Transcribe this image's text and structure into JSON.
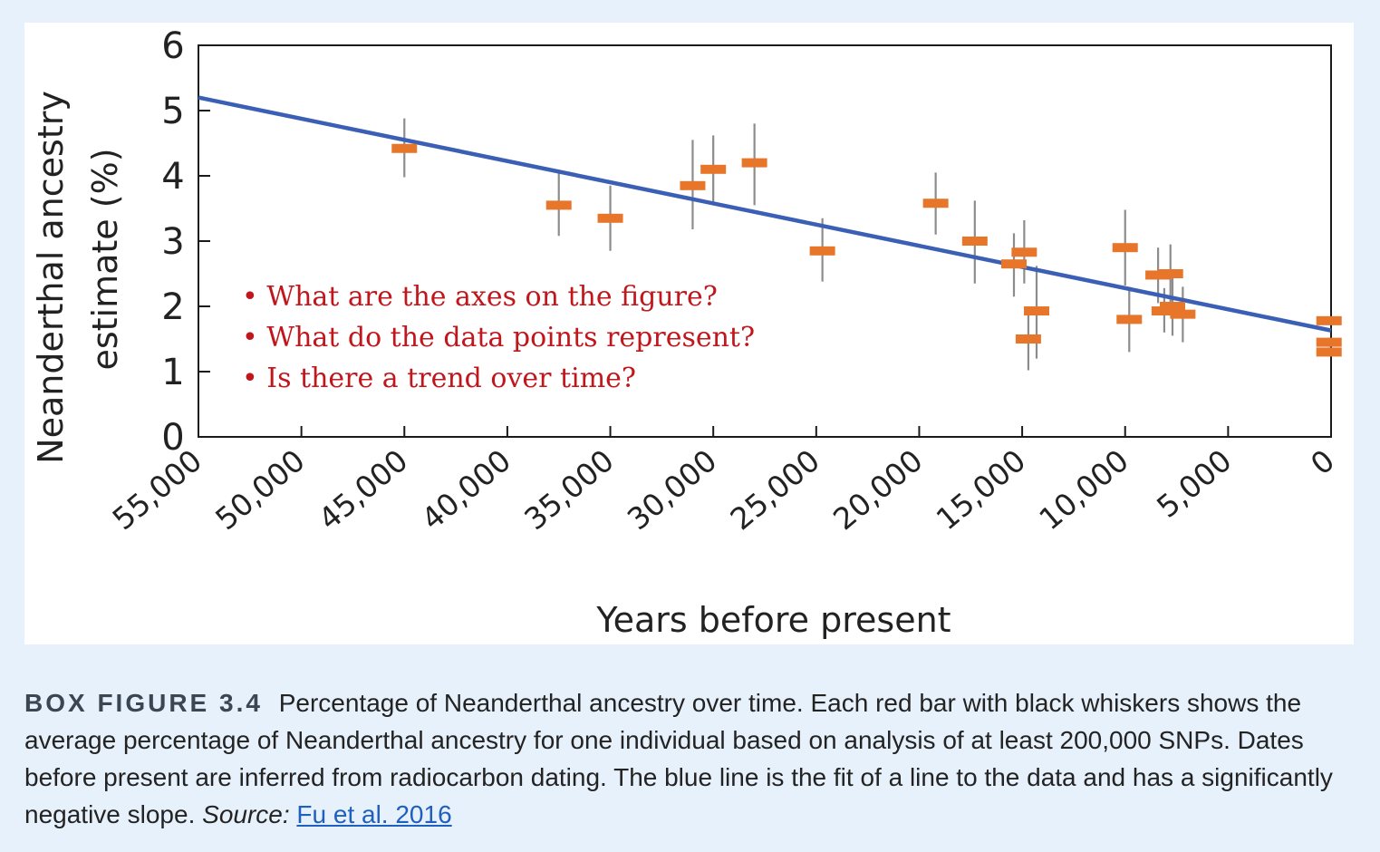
{
  "chart_data": {
    "type": "scatter",
    "xlabel": "Years before present",
    "ylabel_line1": "Neanderthal ancestry",
    "ylabel_line2": "estimate (%)",
    "xlim": [
      55000,
      0
    ],
    "ylim": [
      0,
      6
    ],
    "xticks": [
      55000,
      50000,
      45000,
      40000,
      35000,
      30000,
      25000,
      20000,
      15000,
      10000,
      5000,
      0
    ],
    "xtick_labels": [
      "55,000",
      "50,000",
      "45,000",
      "40,000",
      "35,000",
      "30,000",
      "25,000",
      "20,000",
      "15,000",
      "10,000",
      "5,000",
      "0"
    ],
    "yticks": [
      0,
      1,
      2,
      3,
      4,
      5,
      6
    ],
    "ytick_labels": [
      "0",
      "1",
      "2",
      "3",
      "4",
      "5",
      "6"
    ],
    "grid": false,
    "points": [
      {
        "x": 45000,
        "y": 4.42,
        "low": 3.98,
        "high": 4.88
      },
      {
        "x": 37500,
        "y": 3.55,
        "low": 3.08,
        "high": 4.05
      },
      {
        "x": 35000,
        "y": 3.35,
        "low": 2.85,
        "high": 3.85
      },
      {
        "x": 31000,
        "y": 3.85,
        "low": 3.18,
        "high": 4.55
      },
      {
        "x": 30000,
        "y": 4.1,
        "low": 3.55,
        "high": 4.62
      },
      {
        "x": 28000,
        "y": 4.2,
        "low": 3.55,
        "high": 4.8
      },
      {
        "x": 24700,
        "y": 2.85,
        "low": 2.38,
        "high": 3.35
      },
      {
        "x": 19200,
        "y": 3.58,
        "low": 3.1,
        "high": 4.05
      },
      {
        "x": 17300,
        "y": 3.0,
        "low": 2.35,
        "high": 3.62
      },
      {
        "x": 15400,
        "y": 2.65,
        "low": 2.15,
        "high": 3.12
      },
      {
        "x": 14900,
        "y": 2.83,
        "low": 2.35,
        "high": 3.32
      },
      {
        "x": 14700,
        "y": 1.5,
        "low": 1.02,
        "high": 1.98
      },
      {
        "x": 14300,
        "y": 1.93,
        "low": 1.2,
        "high": 2.62
      },
      {
        "x": 10000,
        "y": 2.9,
        "low": 2.32,
        "high": 3.48
      },
      {
        "x": 9800,
        "y": 1.8,
        "low": 1.3,
        "high": 2.3
      },
      {
        "x": 8400,
        "y": 2.48,
        "low": 2.05,
        "high": 2.9
      },
      {
        "x": 7800,
        "y": 2.5,
        "low": 2.05,
        "high": 2.95
      },
      {
        "x": 8100,
        "y": 1.93,
        "low": 1.6,
        "high": 2.28
      },
      {
        "x": 7700,
        "y": 2.0,
        "low": 1.55,
        "high": 2.45
      },
      {
        "x": 7200,
        "y": 1.88,
        "low": 1.45,
        "high": 2.3
      },
      {
        "x": 100,
        "y": 1.78,
        "low": 1.72,
        "high": 1.84
      },
      {
        "x": 100,
        "y": 1.45,
        "low": 1.38,
        "high": 1.52
      },
      {
        "x": 100,
        "y": 1.3,
        "low": 1.23,
        "high": 1.37
      }
    ],
    "fit_line": {
      "x": [
        55000,
        0
      ],
      "y": [
        5.2,
        1.63
      ]
    },
    "colors": {
      "marker": "#e8762a",
      "whisker": "#8c8c8c",
      "fit": "#3a5fb5",
      "axis": "#1a1a1a",
      "text": "#222222"
    }
  },
  "annotations": {
    "bullets": [
      "• What are the axes on the figure?",
      "• What do the data points represent?",
      "• Is there a trend over time?"
    ],
    "color": "#c0161c"
  },
  "caption": {
    "label": "BOX FIGURE 3.4",
    "text": "Percentage of Neanderthal ancestry over time. Each red bar with black whiskers shows the average percentage of Neanderthal ancestry for one individual based on analysis of at least 200,000 SNPs. Dates before present are inferred from radiocarbon dating. The blue line is the fit of a line to the data and has a significantly negative slope.",
    "source_label": "Source:",
    "source_link": "Fu et al. 2016"
  }
}
